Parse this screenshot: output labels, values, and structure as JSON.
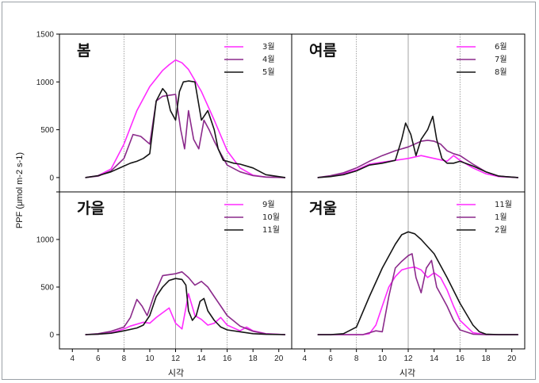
{
  "colors": {
    "series1": "#ff2bff",
    "series2": "#8b2a8b",
    "series3": "#151515",
    "grid": "#8c8c8c",
    "frame": "#000000"
  },
  "chart_data": {
    "type": "line",
    "ylabel": "PPF (μmol m-2 s-1)",
    "xlabel": "시각",
    "xlim": [
      3,
      21
    ],
    "ylim": [
      -150,
      1500
    ],
    "xticks": [
      4,
      6,
      8,
      10,
      12,
      14,
      16,
      18,
      20
    ],
    "yticks": [
      0,
      500,
      1000,
      1500
    ],
    "vlines": [
      8,
      12,
      16
    ],
    "panels": [
      {
        "title": "봄",
        "series": [
          {
            "name": "3월",
            "x": [
              5,
              6,
              7,
              8,
              9,
              10,
              11,
              11.5,
              12,
              12.5,
              13,
              14,
              15,
              16,
              17,
              18,
              19,
              20.5
            ],
            "y": [
              0,
              20,
              90,
              350,
              700,
              950,
              1120,
              1180,
              1230,
              1200,
              1130,
              900,
              600,
              280,
              100,
              25,
              5,
              0
            ]
          },
          {
            "name": "4월",
            "x": [
              5,
              6,
              7,
              8,
              8.7,
              9.3,
              10,
              10.5,
              11,
              11.5,
              12,
              12.4,
              12.7,
              13,
              13.4,
              13.8,
              14.2,
              14.6,
              15,
              15.5,
              16,
              17,
              18,
              19,
              20.5
            ],
            "y": [
              0,
              15,
              70,
              200,
              450,
              430,
              350,
              800,
              850,
              860,
              870,
              500,
              300,
              700,
              400,
              300,
              600,
              500,
              380,
              250,
              130,
              60,
              20,
              5,
              0
            ]
          },
          {
            "name": "5월",
            "x": [
              5,
              6,
              7,
              8,
              8.5,
              9,
              9.5,
              10,
              10.5,
              11,
              11.3,
              11.6,
              12,
              12.3,
              12.6,
              13,
              13.5,
              14,
              14.5,
              15,
              15.3,
              15.7,
              16,
              16.5,
              17,
              18,
              19,
              20.5
            ],
            "y": [
              0,
              20,
              60,
              120,
              150,
              170,
              200,
              250,
              800,
              930,
              880,
              700,
              600,
              900,
              1000,
              1010,
              1000,
              600,
              700,
              500,
              300,
              180,
              170,
              150,
              140,
              100,
              30,
              0
            ]
          }
        ]
      },
      {
        "title": "여름",
        "series": [
          {
            "name": "6월",
            "x": [
              5,
              6,
              7,
              8,
              9,
              10,
              11,
              12,
              13,
              14,
              15,
              15.5,
              16,
              17,
              18,
              19,
              20.5
            ],
            "y": [
              0,
              15,
              40,
              80,
              140,
              160,
              180,
              200,
              230,
              200,
              170,
              230,
              180,
              100,
              40,
              10,
              0
            ]
          },
          {
            "name": "7월",
            "x": [
              5,
              6,
              7,
              8,
              9,
              10,
              11,
              12,
              13,
              13.5,
              14,
              14.5,
              15,
              15.5,
              16,
              17,
              18,
              19,
              20.5
            ],
            "y": [
              0,
              20,
              50,
              100,
              170,
              230,
              280,
              320,
              380,
              390,
              380,
              350,
              280,
              250,
              230,
              140,
              60,
              15,
              0
            ]
          },
          {
            "name": "8월",
            "x": [
              5,
              6,
              7,
              8,
              9,
              10,
              11,
              11.5,
              11.8,
              12.2,
              12.6,
              13,
              13.5,
              13.9,
              14.2,
              14.6,
              15,
              15.5,
              16,
              17,
              18,
              19,
              20.5
            ],
            "y": [
              0,
              10,
              30,
              70,
              130,
              150,
              180,
              400,
              570,
              450,
              230,
              400,
              500,
              640,
              400,
              200,
              150,
              150,
              170,
              120,
              60,
              15,
              0
            ]
          }
        ]
      },
      {
        "title": "가을",
        "series": [
          {
            "name": "9월",
            "x": [
              5,
              6,
              7,
              8,
              8.5,
              9,
              9.5,
              10,
              10.5,
              11,
              11.5,
              12,
              12.5,
              13,
              13.5,
              14,
              14.5,
              15,
              15.5,
              16,
              17,
              17.5,
              18,
              19,
              20.5
            ],
            "y": [
              0,
              5,
              20,
              60,
              90,
              110,
              130,
              120,
              180,
              230,
              280,
              120,
              60,
              430,
              200,
              160,
              100,
              120,
              180,
              100,
              40,
              80,
              40,
              10,
              0
            ]
          },
          {
            "name": "10월",
            "x": [
              5,
              6,
              7,
              8,
              8.5,
              9,
              9.4,
              9.8,
              10.3,
              11,
              12,
              12.5,
              13,
              13.5,
              14,
              14.5,
              15,
              15.5,
              16,
              17,
              18,
              19,
              20.5
            ],
            "y": [
              0,
              10,
              35,
              80,
              180,
              370,
              300,
              200,
              400,
              620,
              640,
              660,
              600,
              520,
              560,
              500,
              400,
              300,
              200,
              90,
              35,
              8,
              0
            ]
          },
          {
            "name": "11월",
            "x": [
              5,
              6,
              7,
              8,
              9,
              9.5,
              10,
              10.5,
              11,
              11.5,
              12,
              12.5,
              12.8,
              13,
              13.3,
              13.6,
              13.9,
              14.2,
              14.5,
              15,
              15.5,
              16,
              17,
              18,
              19,
              20.5
            ],
            "y": [
              0,
              5,
              15,
              40,
              70,
              100,
              200,
              400,
              500,
              570,
              590,
              580,
              520,
              250,
              150,
              200,
              350,
              380,
              250,
              150,
              80,
              50,
              30,
              10,
              3,
              0
            ]
          }
        ]
      },
      {
        "title": "겨울",
        "series": [
          {
            "name": "11월",
            "x": [
              5,
              6,
              7,
              8,
              8.5,
              9,
              9.5,
              10,
              10.5,
              11,
              11.5,
              12,
              12.5,
              13,
              13.5,
              14,
              14.5,
              15,
              15.5,
              16,
              17,
              18,
              19,
              20.5
            ],
            "y": [
              0,
              0,
              0,
              0,
              0,
              10,
              100,
              300,
              500,
              610,
              680,
              700,
              710,
              680,
              600,
              650,
              600,
              470,
              300,
              150,
              20,
              0,
              0,
              0
            ]
          },
          {
            "name": "1월",
            "x": [
              5,
              6,
              7,
              8,
              8.5,
              9,
              9.5,
              10,
              10.5,
              11,
              11.5,
              12,
              12.3,
              12.6,
              13,
              13.4,
              13.8,
              14.2,
              14.6,
              15,
              15.5,
              16,
              17,
              18,
              19,
              20.5
            ],
            "y": [
              0,
              0,
              0,
              0,
              0,
              20,
              40,
              30,
              400,
              700,
              770,
              830,
              850,
              600,
              440,
              700,
              780,
              500,
              400,
              300,
              150,
              50,
              5,
              0,
              0,
              0
            ]
          },
          {
            "name": "2월",
            "x": [
              5,
              6,
              7,
              8,
              9,
              10,
              11,
              11.5,
              12,
              12.5,
              13,
              14,
              15,
              16,
              17,
              17.5,
              18,
              19,
              20.5
            ],
            "y": [
              0,
              0,
              10,
              80,
              400,
              700,
              950,
              1050,
              1080,
              1060,
              1000,
              850,
              600,
              330,
              100,
              30,
              5,
              0,
              0
            ]
          }
        ]
      }
    ]
  }
}
